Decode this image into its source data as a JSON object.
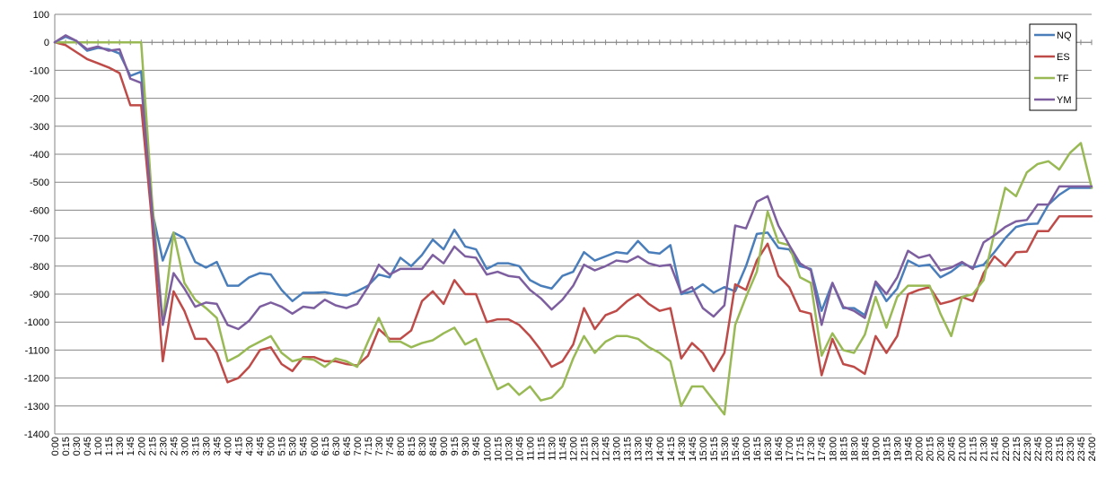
{
  "chart_data": {
    "type": "line",
    "title": "",
    "xlabel": "",
    "ylabel": "",
    "ylim": [
      -1400,
      100
    ],
    "yticks": [
      100,
      0,
      -100,
      -200,
      -300,
      -400,
      -500,
      -600,
      -700,
      -800,
      -900,
      -1000,
      -1100,
      -1200,
      -1300,
      -1400
    ],
    "grid": "horizontal",
    "legend_position": "top-right",
    "x": [
      "0:00",
      "0:15",
      "0:30",
      "0:45",
      "1:00",
      "1:15",
      "1:30",
      "1:45",
      "2:00",
      "2:15",
      "2:30",
      "2:45",
      "3:00",
      "3:15",
      "3:30",
      "3:45",
      "4:00",
      "4:15",
      "4:30",
      "4:45",
      "5:00",
      "5:15",
      "5:30",
      "5:45",
      "6:00",
      "6:15",
      "6:30",
      "6:45",
      "7:00",
      "7:15",
      "7:30",
      "7:45",
      "8:00",
      "8:15",
      "8:30",
      "8:45",
      "9:00",
      "9:15",
      "9:30",
      "9:45",
      "10:00",
      "10:15",
      "10:30",
      "10:45",
      "11:00",
      "11:15",
      "11:30",
      "11:45",
      "12:00",
      "12:15",
      "12:30",
      "12:45",
      "13:00",
      "13:15",
      "13:30",
      "13:45",
      "14:00",
      "14:15",
      "14:30",
      "14:45",
      "15:00",
      "15:15",
      "15:30",
      "15:45",
      "16:00",
      "16:15",
      "16:30",
      "16:45",
      "17:00",
      "17:15",
      "17:30",
      "17:45",
      "18:00",
      "18:15",
      "18:30",
      "18:45",
      "19:00",
      "19:15",
      "19:30",
      "19:45",
      "20:00",
      "20:15",
      "20:30",
      "20:45",
      "21:00",
      "21:15",
      "21:30",
      "21:45",
      "22:00",
      "22:15",
      "22:30",
      "22:45",
      "23:00",
      "23:15",
      "23:30",
      "23:45",
      "24:00"
    ],
    "series": [
      {
        "name": "NQ",
        "color": "#4A7EBB",
        "values": [
          0,
          20,
          5,
          -30,
          -20,
          -25,
          -40,
          -120,
          -105,
          -600,
          -780,
          -680,
          -700,
          -785,
          -805,
          -785,
          -870,
          -870,
          -840,
          -825,
          -830,
          -885,
          -925,
          -895,
          -895,
          -893,
          -900,
          -905,
          -890,
          -870,
          -830,
          -840,
          -770,
          -800,
          -760,
          -705,
          -740,
          -670,
          -730,
          -740,
          -810,
          -790,
          -790,
          -800,
          -850,
          -870,
          -880,
          -835,
          -820,
          -750,
          -780,
          -765,
          -750,
          -755,
          -710,
          -750,
          -755,
          -725,
          -900,
          -890,
          -865,
          -895,
          -875,
          -890,
          -800,
          -685,
          -680,
          -735,
          -740,
          -800,
          -810,
          -960,
          -860,
          -950,
          -950,
          -975,
          -860,
          -925,
          -880,
          -780,
          -800,
          -795,
          -840,
          -820,
          -790,
          -805,
          -795,
          -750,
          -700,
          -660,
          -650,
          -648,
          -580,
          -545,
          -520,
          -520,
          -520
        ]
      },
      {
        "name": "ES",
        "color": "#BE4B48",
        "values": [
          0,
          -10,
          -35,
          -60,
          -75,
          -90,
          -110,
          -225,
          -225,
          -640,
          -1140,
          -890,
          -960,
          -1060,
          -1060,
          -1110,
          -1215,
          -1200,
          -1160,
          -1100,
          -1090,
          -1150,
          -1175,
          -1125,
          -1125,
          -1140,
          -1140,
          -1150,
          -1155,
          -1120,
          -1025,
          -1060,
          -1060,
          -1030,
          -925,
          -890,
          -935,
          -850,
          -900,
          -900,
          -1000,
          -990,
          -990,
          -1010,
          -1050,
          -1100,
          -1160,
          -1140,
          -1080,
          -950,
          -1025,
          -975,
          -960,
          -925,
          -900,
          -935,
          -960,
          -950,
          -1130,
          -1075,
          -1110,
          -1175,
          -1110,
          -865,
          -885,
          -780,
          -720,
          -835,
          -875,
          -960,
          -970,
          -1190,
          -1060,
          -1150,
          -1160,
          -1185,
          -1050,
          -1110,
          -1050,
          -900,
          -885,
          -875,
          -935,
          -925,
          -910,
          -925,
          -825,
          -765,
          -800,
          -750,
          -748,
          -675,
          -675,
          -622,
          -622,
          -622,
          -622
        ]
      },
      {
        "name": "TF",
        "color": "#98B954",
        "values": [
          0,
          0,
          0,
          0,
          0,
          0,
          0,
          0,
          0,
          -560,
          -1000,
          -680,
          -860,
          -920,
          -950,
          -985,
          -1140,
          -1120,
          -1090,
          -1070,
          -1050,
          -1110,
          -1140,
          -1130,
          -1135,
          -1160,
          -1130,
          -1140,
          -1160,
          -1070,
          -985,
          -1070,
          -1070,
          -1090,
          -1075,
          -1065,
          -1040,
          -1020,
          -1080,
          -1060,
          -1150,
          -1240,
          -1220,
          -1260,
          -1230,
          -1280,
          -1270,
          -1230,
          -1130,
          -1050,
          -1110,
          -1070,
          -1050,
          -1050,
          -1060,
          -1090,
          -1110,
          -1140,
          -1300,
          -1230,
          -1230,
          -1280,
          -1330,
          -1010,
          -910,
          -820,
          -605,
          -715,
          -725,
          -840,
          -860,
          -1120,
          -1040,
          -1100,
          -1110,
          -1045,
          -910,
          -1020,
          -910,
          -870,
          -870,
          -870,
          -970,
          -1050,
          -910,
          -900,
          -850,
          -680,
          -520,
          -550,
          -465,
          -435,
          -425,
          -455,
          -395,
          -360,
          -520
        ]
      },
      {
        "name": "YM",
        "color": "#7D5FA0",
        "values": [
          0,
          25,
          5,
          -25,
          -15,
          -30,
          -25,
          -130,
          -145,
          -600,
          -1010,
          -825,
          -880,
          -945,
          -930,
          -935,
          -1010,
          -1025,
          -995,
          -945,
          -930,
          -945,
          -970,
          -945,
          -950,
          -920,
          -940,
          -950,
          -935,
          -875,
          -795,
          -830,
          -810,
          -810,
          -810,
          -760,
          -790,
          -730,
          -765,
          -770,
          -830,
          -820,
          -835,
          -840,
          -885,
          -915,
          -955,
          -920,
          -870,
          -795,
          -815,
          -800,
          -780,
          -785,
          -765,
          -790,
          -800,
          -795,
          -895,
          -875,
          -950,
          -980,
          -940,
          -655,
          -665,
          -570,
          -550,
          -655,
          -725,
          -790,
          -815,
          -1010,
          -860,
          -945,
          -960,
          -985,
          -855,
          -900,
          -840,
          -745,
          -770,
          -760,
          -815,
          -805,
          -785,
          -810,
          -715,
          -690,
          -660,
          -640,
          -635,
          -580,
          -580,
          -515,
          -515,
          -515,
          -515
        ]
      }
    ]
  }
}
